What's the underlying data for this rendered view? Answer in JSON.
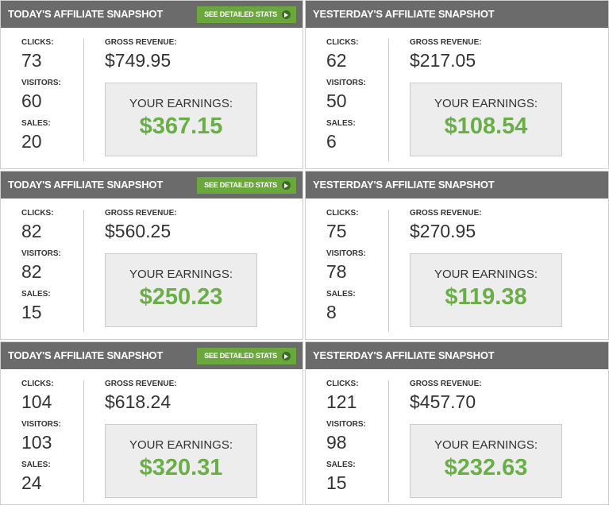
{
  "panels": [
    {
      "title": "TODAY'S AFFILIATE SNAPSHOT",
      "button": "SEE DETAILED STATS",
      "stats": [
        {
          "label": "CLICKS:",
          "value": 73
        },
        {
          "label": "VISITORS:",
          "value": 60
        },
        {
          "label": "SALES:",
          "value": 20
        }
      ],
      "revenue": {
        "label": "GROSS REVENUE:",
        "value": "$749.95"
      },
      "earnings": {
        "label": "YOUR EARNINGS:",
        "value": "$367.15"
      }
    },
    {
      "title": "YESTERDAY'S AFFILIATE SNAPSHOT",
      "stats": [
        {
          "label": "CLICKS:",
          "value": 62
        },
        {
          "label": "VISITORS:",
          "value": 50
        },
        {
          "label": "SALES:",
          "value": 6
        }
      ],
      "revenue": {
        "label": "GROSS REVENUE:",
        "value": "$217.05"
      },
      "earnings": {
        "label": "YOUR EARNINGS:",
        "value": "$108.54"
      }
    },
    {
      "title": "TODAY'S AFFILIATE SNAPSHOT",
      "button": "SEE DETAILED STATS",
      "stats": [
        {
          "label": "CLICKS:",
          "value": 82
        },
        {
          "label": "VISITORS:",
          "value": 82
        },
        {
          "label": "SALES:",
          "value": 15
        }
      ],
      "revenue": {
        "label": "GROSS REVENUE:",
        "value": "$560.25"
      },
      "earnings": {
        "label": "YOUR EARNINGS:",
        "value": "$250.23"
      }
    },
    {
      "title": "YESTERDAY'S AFFILIATE SNAPSHOT",
      "stats": [
        {
          "label": "CLICKS:",
          "value": 75
        },
        {
          "label": "VISITORS:",
          "value": 78
        },
        {
          "label": "SALES:",
          "value": 8
        }
      ],
      "revenue": {
        "label": "GROSS REVENUE:",
        "value": "$270.95"
      },
      "earnings": {
        "label": "YOUR EARNINGS:",
        "value": "$119.38"
      }
    },
    {
      "title": "TODAY'S AFFILIATE SNAPSHOT",
      "button": "SEE DETAILED STATS",
      "stats": [
        {
          "label": "CLICKS:",
          "value": 104
        },
        {
          "label": "VISITORS:",
          "value": 103
        },
        {
          "label": "SALES:",
          "value": 24
        }
      ],
      "revenue": {
        "label": "GROSS REVENUE:",
        "value": "$618.24"
      },
      "earnings": {
        "label": "YOUR EARNINGS:",
        "value": "$320.31"
      }
    },
    {
      "title": "YESTERDAY'S AFFILIATE SNAPSHOT",
      "stats": [
        {
          "label": "CLICKS:",
          "value": 121
        },
        {
          "label": "VISITORS:",
          "value": 98
        },
        {
          "label": "SALES:",
          "value": 15
        }
      ],
      "revenue": {
        "label": "GROSS REVENUE:",
        "value": "$457.70"
      },
      "earnings": {
        "label": "YOUR EARNINGS:",
        "value": "$232.63"
      }
    }
  ]
}
